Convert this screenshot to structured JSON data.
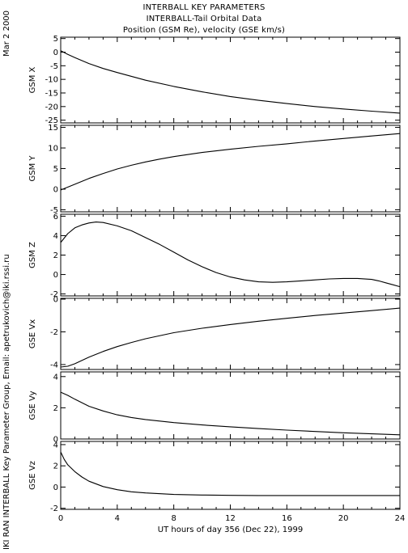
{
  "header": {
    "date": "Mar  2 2000",
    "title_lines": [
      "INTERBALL KEY PARAMETERS",
      "INTERBALL-Tail Orbital Data",
      "Position (GSM Re), velocity (GSE km/s)"
    ]
  },
  "footer": {
    "credit": "IKI RAN INTERBALL Key Parameter Group, Email: apetrukovich@iki.rssi.ru"
  },
  "chart_data": [
    {
      "type": "line",
      "ylabel": "GSM X",
      "ylim": [
        -26,
        5.5
      ],
      "yticks": [
        5,
        0,
        -5,
        -10,
        -15,
        -20,
        -25
      ],
      "xlim": [
        0,
        24
      ],
      "series": [
        {
          "x": [
            0,
            0.5,
            1,
            2,
            3,
            4,
            6,
            8,
            10,
            12,
            14,
            16,
            18,
            20,
            22,
            24
          ],
          "y": [
            0.5,
            -0.8,
            -2,
            -4.2,
            -6,
            -7.5,
            -10.3,
            -12.6,
            -14.6,
            -16.3,
            -17.7,
            -18.9,
            -20,
            -20.9,
            -21.7,
            -22.4
          ]
        }
      ]
    },
    {
      "type": "line",
      "ylabel": "GSM Y",
      "ylim": [
        -5.5,
        15.5
      ],
      "yticks": [
        15,
        10,
        5,
        0,
        -5
      ],
      "xlim": [
        0,
        24
      ],
      "series": [
        {
          "x": [
            0,
            1,
            2,
            3,
            4,
            5,
            6,
            7,
            8,
            10,
            12,
            14,
            16,
            18,
            20,
            22,
            24
          ],
          "y": [
            -0.2,
            1.2,
            2.6,
            3.8,
            4.9,
            5.8,
            6.6,
            7.3,
            7.9,
            8.9,
            9.7,
            10.4,
            11,
            11.7,
            12.3,
            12.9,
            13.5
          ]
        }
      ]
    },
    {
      "type": "line",
      "ylabel": "GSM Z",
      "ylim": [
        -2.2,
        6.2
      ],
      "yticks": [
        6,
        4,
        2,
        0,
        -2
      ],
      "xlim": [
        0,
        24
      ],
      "series": [
        {
          "x": [
            0,
            0.5,
            1,
            1.5,
            2,
            2.5,
            3,
            4,
            5,
            6,
            7,
            8,
            9,
            10,
            11,
            12,
            13,
            14,
            15,
            16,
            17,
            18,
            19,
            20,
            21,
            22,
            22.5,
            23,
            23.5,
            24
          ],
          "y": [
            3.3,
            4.2,
            4.8,
            5.1,
            5.3,
            5.4,
            5.35,
            5.0,
            4.5,
            3.8,
            3.1,
            2.3,
            1.5,
            0.8,
            0.2,
            -0.25,
            -0.55,
            -0.75,
            -0.8,
            -0.75,
            -0.65,
            -0.55,
            -0.45,
            -0.4,
            -0.4,
            -0.5,
            -0.65,
            -0.85,
            -1.05,
            -1.25
          ]
        }
      ]
    },
    {
      "type": "line",
      "ylabel": "GSE Vx",
      "ylim": [
        -4.3,
        0.05
      ],
      "yticks": [
        0,
        -2,
        -4
      ],
      "xlim": [
        0,
        24
      ],
      "series": [
        {
          "x": [
            0,
            0.5,
            1,
            2,
            3,
            4,
            5,
            6,
            8,
            10,
            12,
            14,
            16,
            18,
            20,
            22,
            24
          ],
          "y": [
            -4.15,
            -4.1,
            -3.95,
            -3.55,
            -3.2,
            -2.9,
            -2.65,
            -2.42,
            -2.05,
            -1.78,
            -1.55,
            -1.35,
            -1.17,
            -1.0,
            -0.85,
            -0.7,
            -0.55
          ]
        }
      ]
    },
    {
      "type": "line",
      "ylabel": "GSE Vy",
      "ylim": [
        0,
        4.3
      ],
      "yticks": [
        4,
        2,
        0
      ],
      "xlim": [
        0,
        24
      ],
      "series": [
        {
          "x": [
            0,
            0.5,
            1,
            2,
            3,
            4,
            5,
            6,
            8,
            10,
            12,
            14,
            16,
            18,
            20,
            22,
            24
          ],
          "y": [
            3.0,
            2.8,
            2.55,
            2.1,
            1.8,
            1.55,
            1.38,
            1.25,
            1.05,
            0.9,
            0.78,
            0.67,
            0.57,
            0.48,
            0.4,
            0.33,
            0.27
          ]
        }
      ]
    },
    {
      "type": "line",
      "ylabel": "GSE Vz",
      "ylim": [
        -2.1,
        4.3
      ],
      "yticks": [
        4,
        2,
        0,
        -2
      ],
      "xlim": [
        0,
        24
      ],
      "series": [
        {
          "x": [
            0,
            0.25,
            0.5,
            1,
            1.5,
            2,
            3,
            4,
            5,
            6,
            8,
            10,
            12,
            14,
            16,
            18,
            20,
            22,
            24
          ],
          "y": [
            3.3,
            2.6,
            2.1,
            1.45,
            0.95,
            0.55,
            0.05,
            -0.25,
            -0.45,
            -0.55,
            -0.7,
            -0.75,
            -0.78,
            -0.8,
            -0.8,
            -0.8,
            -0.8,
            -0.8,
            -0.8
          ]
        }
      ]
    }
  ],
  "x_axis": {
    "tick_labels": [
      "0",
      "4",
      "8",
      "12",
      "16",
      "20",
      "24"
    ],
    "label": "UT hours of day 356 (Dec 22), 1999"
  }
}
